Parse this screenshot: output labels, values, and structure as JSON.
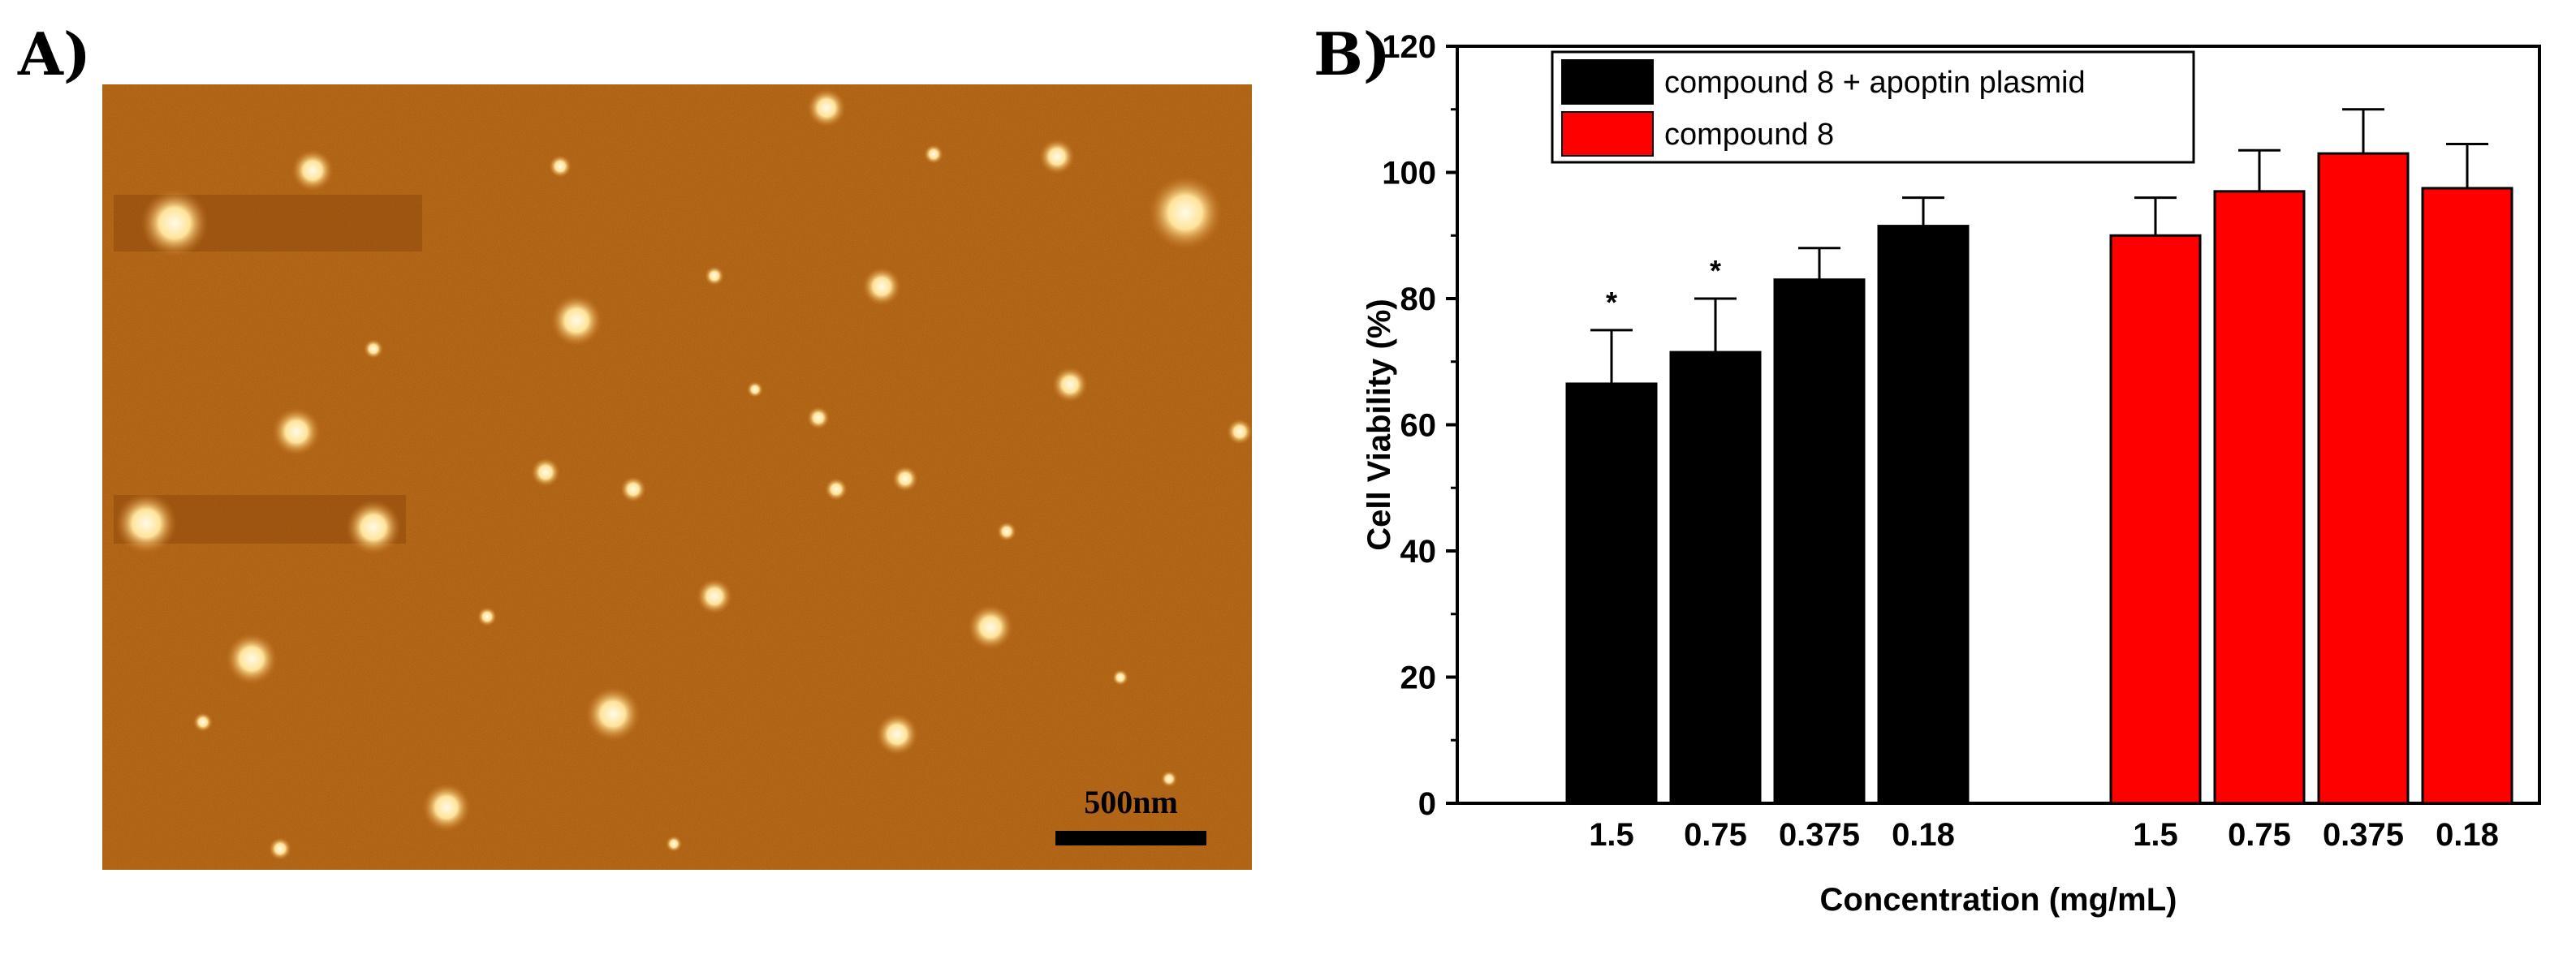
{
  "panel_a": {
    "label": "A)",
    "scale_bar_label": "500nm",
    "colors": {
      "background": "#a9550d",
      "particle": "#ffe7a6"
    },
    "particles_description_icon": "afm-particle"
  },
  "panel_b": {
    "label": "B)"
  },
  "chart_data": {
    "type": "bar",
    "xlabel": "Concentration (mg/mL)",
    "ylabel": "Cell Viability (%)",
    "ylim": [
      0,
      120
    ],
    "yticks": [
      0,
      20,
      40,
      60,
      80,
      100,
      120
    ],
    "legend_position": "top-left",
    "grid": false,
    "series": [
      {
        "name": "compound 8 + apoptin plasmid",
        "color": "#000000",
        "categories": [
          "1.5",
          "0.75",
          "0.375",
          "0.18"
        ],
        "values": [
          66.5,
          71.5,
          83,
          91.5
        ],
        "errors": [
          8.5,
          8.5,
          5,
          4.5
        ],
        "annotations": [
          "*",
          "*",
          "",
          ""
        ]
      },
      {
        "name": "compound 8",
        "color": "#ff0000",
        "categories": [
          "1.5",
          "0.75",
          "0.375",
          "0.18"
        ],
        "values": [
          90,
          97,
          103,
          97.5
        ],
        "errors": [
          6,
          6.5,
          7,
          7
        ],
        "annotations": [
          "",
          "",
          "",
          ""
        ]
      }
    ]
  }
}
